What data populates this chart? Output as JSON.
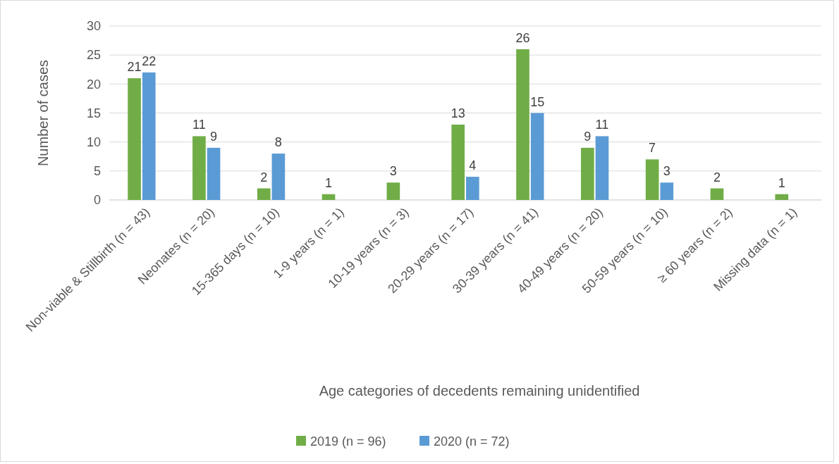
{
  "chart_data": {
    "type": "bar",
    "xlabel": "Age categories of decedents remaining unidentified",
    "ylabel": "Number of cases",
    "categories": [
      "Non-viable & Stillbirth (n = 43)",
      "Neonates (n = 20)",
      "15-365 days (n = 10)",
      "1-9 years (n = 1)",
      "10-19 years (n = 3)",
      "20-29 years (n = 17)",
      "30-39 years (n = 41)",
      "40-49 years (n = 20)",
      "50-59 years (n = 10)",
      "≥ 60 years (n = 2)",
      "Missing data (n = 1)"
    ],
    "series": [
      {
        "name": "2019 (n = 96)",
        "color": "#70ad47",
        "values": [
          21,
          11,
          2,
          1,
          3,
          13,
          26,
          9,
          7,
          2,
          1
        ]
      },
      {
        "name": "2020 (n = 72)",
        "color": "#5b9bd5",
        "values": [
          22,
          9,
          8,
          null,
          null,
          4,
          15,
          11,
          3,
          null,
          null
        ]
      }
    ],
    "ylim": [
      0,
      30
    ],
    "yticks": [
      0,
      5,
      10,
      15,
      20,
      25,
      30
    ],
    "grid": "y",
    "legend": "bottom",
    "data_labels": true
  }
}
